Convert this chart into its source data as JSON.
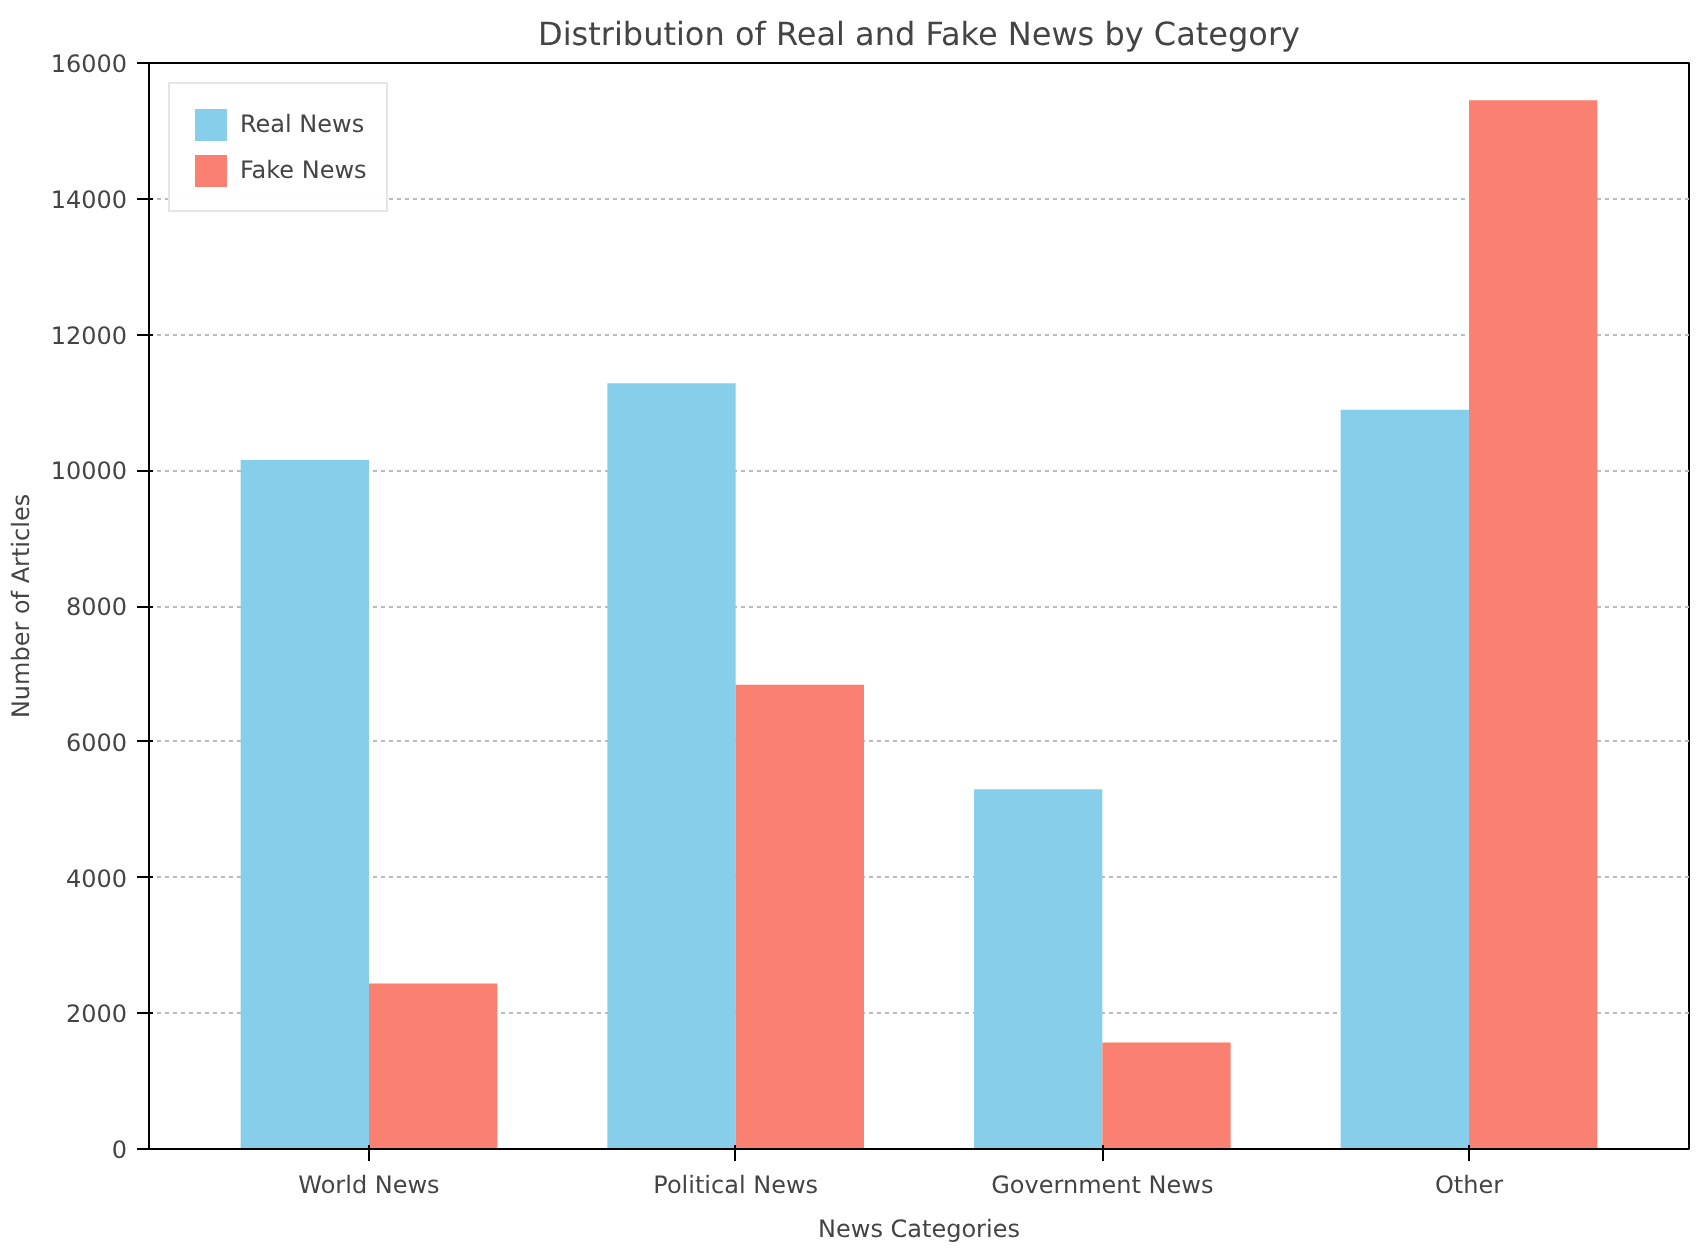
{
  "chart_data": {
    "type": "bar",
    "title": "Distribution of Real and Fake News by Category",
    "xlabel": "News Categories",
    "ylabel": "Number of Articles",
    "categories": [
      "World News",
      "Political News",
      "Government News",
      "Other"
    ],
    "series": [
      {
        "name": "Real News",
        "color": "#87ceeb",
        "values": [
          10150,
          11280,
          5300,
          10890
        ]
      },
      {
        "name": "Fake News",
        "color": "#fa8072",
        "values": [
          2440,
          6840,
          1570,
          15450
        ]
      }
    ],
    "ylim": [
      0,
      16000
    ],
    "yticks": [
      0,
      2000,
      4000,
      6000,
      8000,
      10000,
      12000,
      14000,
      16000
    ],
    "grid": "y",
    "legend": "top left"
  }
}
